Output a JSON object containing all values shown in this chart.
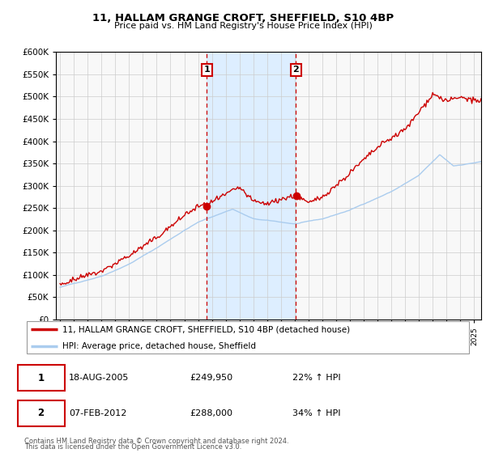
{
  "title": "11, HALLAM GRANGE CROFT, SHEFFIELD, S10 4BP",
  "subtitle": "Price paid vs. HM Land Registry's House Price Index (HPI)",
  "legend_line1": "11, HALLAM GRANGE CROFT, SHEFFIELD, S10 4BP (detached house)",
  "legend_line2": "HPI: Average price, detached house, Sheffield",
  "annotation1_label": "1",
  "annotation1_date": "18-AUG-2005",
  "annotation1_price": "£249,950",
  "annotation1_hpi": "22% ↑ HPI",
  "annotation2_label": "2",
  "annotation2_date": "07-FEB-2012",
  "annotation2_price": "£288,000",
  "annotation2_hpi": "34% ↑ HPI",
  "footnote1": "Contains HM Land Registry data © Crown copyright and database right 2024.",
  "footnote2": "This data is licensed under the Open Government Licence v3.0.",
  "hpi_color": "#aaccee",
  "price_color": "#cc0000",
  "shade_color": "#ddeeff",
  "annotation_box_color": "#cc0000",
  "ylim_min": 0,
  "ylim_max": 600000,
  "sale1_year": 2005.63,
  "sale1_price": 249950,
  "sale2_year": 2012.09,
  "sale2_price": 288000
}
